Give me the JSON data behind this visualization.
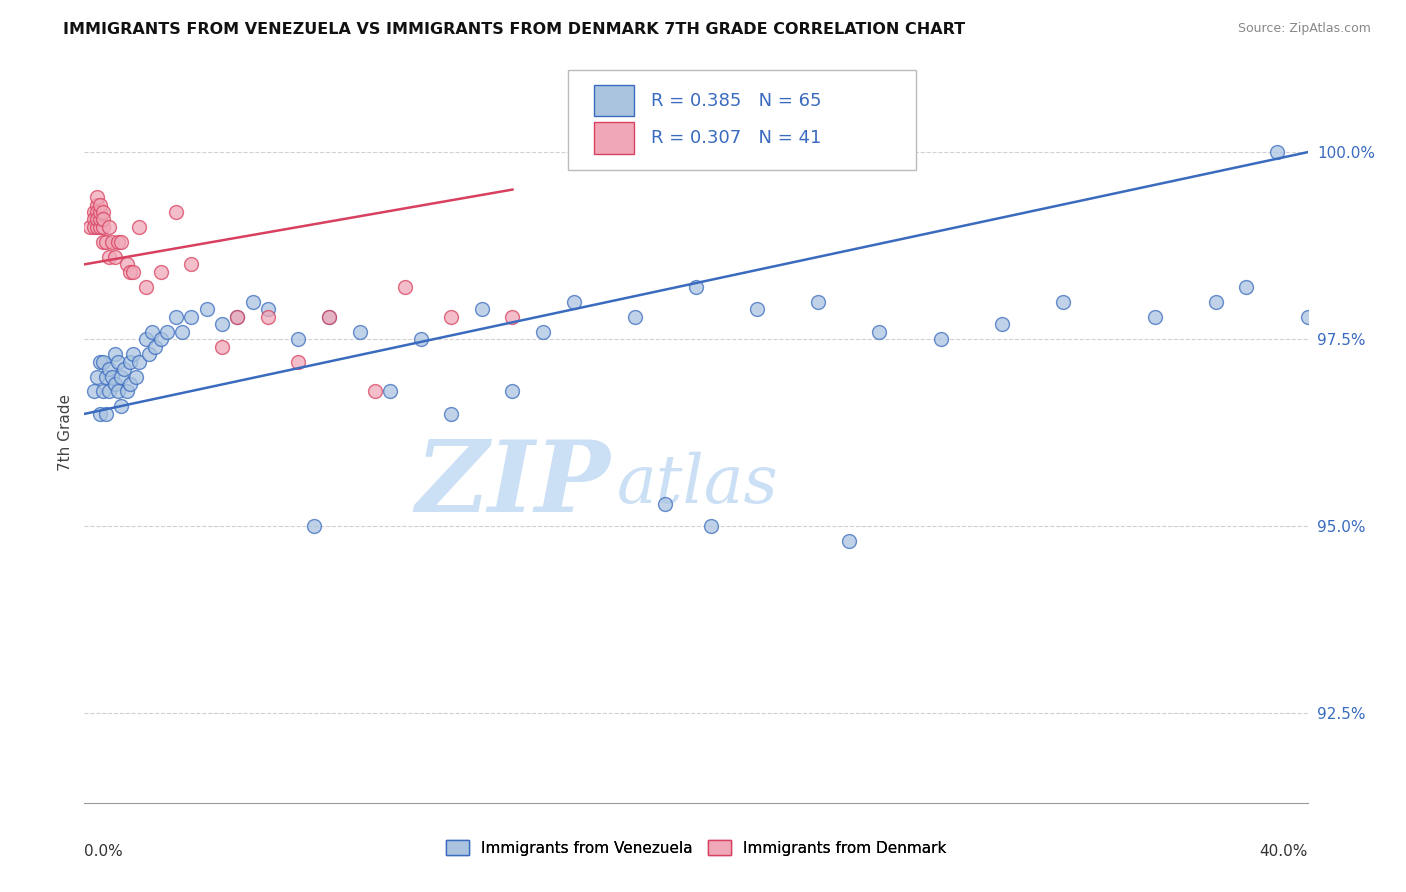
{
  "title": "IMMIGRANTS FROM VENEZUELA VS IMMIGRANTS FROM DENMARK 7TH GRADE CORRELATION CHART",
  "source": "Source: ZipAtlas.com",
  "xlabel_bottom_left": "0.0%",
  "xlabel_bottom_right": "40.0%",
  "ylabel": "7th Grade",
  "ytick_labels": [
    "92.5%",
    "95.0%",
    "97.5%",
    "100.0%"
  ],
  "ytick_values": [
    92.5,
    95.0,
    97.5,
    100.0
  ],
  "xmin": 0.0,
  "xmax": 40.0,
  "ymin": 91.3,
  "ymax": 101.2,
  "legend_r1": "R = 0.385",
  "legend_n1": "N = 65",
  "legend_r2": "R = 0.307",
  "legend_n2": "N = 41",
  "color_venezuela": "#aac4e0",
  "color_denmark": "#f0a8b8",
  "color_venezuela_line": "#3a6bbf",
  "color_denmark_line": "#d84060",
  "legend_text_color": "#3a6bbf",
  "watermark_zip": "ZIP",
  "watermark_atlas": "atlas",
  "watermark_color": "#cce0f5",
  "venezuela_x": [
    0.3,
    0.4,
    0.5,
    0.5,
    0.6,
    0.6,
    0.7,
    0.7,
    0.8,
    0.8,
    0.9,
    1.0,
    1.0,
    1.1,
    1.1,
    1.2,
    1.2,
    1.3,
    1.4,
    1.5,
    1.5,
    1.6,
    1.7,
    1.8,
    2.0,
    2.1,
    2.2,
    2.3,
    2.5,
    2.7,
    3.0,
    3.2,
    3.5,
    4.0,
    4.5,
    5.0,
    5.5,
    6.0,
    7.0,
    8.0,
    9.0,
    10.0,
    11.0,
    12.0,
    13.0,
    14.0,
    15.0,
    16.0,
    18.0,
    20.0,
    22.0,
    24.0,
    25.0,
    26.0,
    28.0,
    30.0,
    32.0,
    35.0,
    37.0,
    38.0,
    39.0,
    40.0,
    19.0,
    20.5,
    7.5
  ],
  "venezuela_y": [
    96.8,
    97.0,
    97.2,
    96.5,
    96.8,
    97.2,
    97.0,
    96.5,
    96.8,
    97.1,
    97.0,
    97.3,
    96.9,
    97.2,
    96.8,
    97.0,
    96.6,
    97.1,
    96.8,
    97.2,
    96.9,
    97.3,
    97.0,
    97.2,
    97.5,
    97.3,
    97.6,
    97.4,
    97.5,
    97.6,
    97.8,
    97.6,
    97.8,
    97.9,
    97.7,
    97.8,
    98.0,
    97.9,
    97.5,
    97.8,
    97.6,
    96.8,
    97.5,
    96.5,
    97.9,
    96.8,
    97.6,
    98.0,
    97.8,
    98.2,
    97.9,
    98.0,
    94.8,
    97.6,
    97.5,
    97.7,
    98.0,
    97.8,
    98.0,
    98.2,
    100.0,
    97.8,
    95.3,
    95.0,
    95.0
  ],
  "denmark_x": [
    0.2,
    0.3,
    0.3,
    0.3,
    0.4,
    0.4,
    0.4,
    0.4,
    0.4,
    0.5,
    0.5,
    0.5,
    0.5,
    0.6,
    0.6,
    0.6,
    0.6,
    0.7,
    0.8,
    0.8,
    0.9,
    1.0,
    1.1,
    1.2,
    1.4,
    1.5,
    1.6,
    1.8,
    2.0,
    2.5,
    3.0,
    3.5,
    4.5,
    5.0,
    6.0,
    7.0,
    8.0,
    9.5,
    10.5,
    12.0,
    14.0
  ],
  "denmark_y": [
    99.0,
    99.2,
    99.1,
    99.0,
    99.3,
    99.2,
    99.0,
    99.1,
    99.4,
    99.0,
    99.1,
    99.2,
    99.3,
    99.0,
    99.2,
    98.8,
    99.1,
    98.8,
    98.6,
    99.0,
    98.8,
    98.6,
    98.8,
    98.8,
    98.5,
    98.4,
    98.4,
    99.0,
    98.2,
    98.4,
    99.2,
    98.5,
    97.4,
    97.8,
    97.8,
    97.2,
    97.8,
    96.8,
    98.2,
    97.8,
    97.8
  ],
  "background_color": "#ffffff",
  "grid_color": "#cccccc",
  "venezuela_line_x0": 0.0,
  "venezuela_line_y0": 96.5,
  "venezuela_line_x1": 40.0,
  "venezuela_line_y1": 100.0,
  "denmark_line_x0": 0.0,
  "denmark_line_y0": 98.5,
  "denmark_line_x1": 14.0,
  "denmark_line_y1": 99.5
}
